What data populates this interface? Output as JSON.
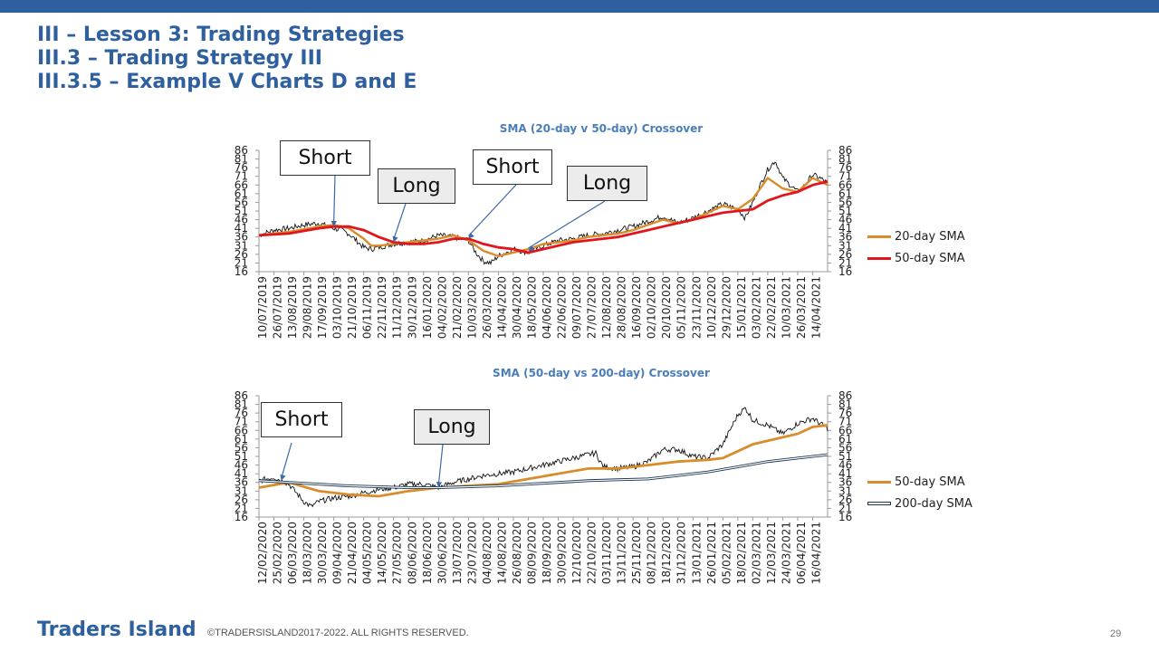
{
  "slide": {
    "title_lines": [
      "III – Lesson 3: Trading Strategies",
      "III.3 – Trading Strategy III",
      "III.3.5 – Example V Charts D and E"
    ],
    "footer_brand": "Traders Island",
    "footer_copyright": "©TRADERSISLAND2017-2022. ALL RIGHTS RESERVED.",
    "page_number": "29",
    "accent_color": "#2e5f9e"
  },
  "chart_data": [
    {
      "type": "line",
      "title": "SMA (20-day v 50-day) Crossover",
      "ylim": [
        16,
        86
      ],
      "y_ticks": [
        16,
        21,
        26,
        31,
        36,
        41,
        46,
        51,
        56,
        61,
        66,
        71,
        76,
        81,
        86
      ],
      "x_tick_labels": [
        "10/07/2019",
        "26/07/2019",
        "13/08/2019",
        "29/08/2019",
        "17/09/2019",
        "03/10/2019",
        "21/10/2019",
        "06/11/2019",
        "22/11/2019",
        "11/12/2019",
        "30/12/2019",
        "16/01/2020",
        "04/02/2020",
        "21/02/2020",
        "10/03/2020",
        "26/03/2020",
        "14/04/2020",
        "30/04/2020",
        "18/05/2020",
        "04/06/2020",
        "22/06/2020",
        "09/07/2020",
        "27/07/2020",
        "12/08/2020",
        "28/08/2020",
        "16/09/2020",
        "02/10/2020",
        "20/10/2020",
        "05/11/2020",
        "23/11/2020",
        "10/12/2020",
        "29/12/2020",
        "15/01/2021",
        "03/02/2021",
        "22/02/2021",
        "10/03/2021",
        "26/03/2021",
        "14/04/2021"
      ],
      "x_ticks_x": [
        0,
        1,
        2,
        3,
        4,
        5,
        6,
        7,
        8,
        9,
        10,
        11,
        12,
        13,
        14,
        15,
        16,
        17,
        18,
        19,
        20,
        21,
        22,
        23,
        24,
        25,
        26,
        27,
        28,
        29,
        30,
        31,
        32,
        33,
        34,
        35,
        36,
        37
      ],
      "x_range": [
        0,
        38
      ],
      "price": {
        "x": [
          0,
          1,
          2,
          3,
          4,
          5,
          5.5,
          6,
          7,
          7.5,
          8,
          9,
          10,
          11,
          12,
          13,
          14,
          14.5,
          15,
          15.5,
          16,
          17,
          18,
          19,
          20,
          21,
          22,
          23,
          24,
          25,
          26,
          27,
          28,
          29,
          30,
          31,
          32,
          32.5,
          33,
          33.5,
          34,
          34.5,
          35,
          36,
          36.5,
          37,
          37.5,
          38
        ],
        "y": [
          37,
          40,
          41,
          43,
          44,
          41,
          40,
          38,
          30,
          29,
          30,
          32,
          33,
          34,
          37,
          36,
          34,
          27,
          22,
          21,
          25,
          29,
          27,
          31,
          34,
          35,
          37,
          38,
          40,
          42,
          45,
          48,
          44,
          47,
          51,
          55,
          52,
          47,
          56,
          66,
          75,
          80,
          70,
          62,
          66,
          72,
          70,
          67
        ]
      },
      "series": [
        {
          "name": "20-day SMA",
          "color": "#d98c2b",
          "x": [
            0,
            2,
            4,
            5,
            6,
            7,
            7.5,
            8,
            9,
            10,
            11,
            12,
            13,
            14,
            15,
            16,
            17,
            18,
            19,
            20,
            21,
            22,
            23,
            24,
            25,
            26,
            27,
            28,
            29,
            30,
            31,
            32,
            33,
            34,
            35,
            36,
            37,
            38
          ],
          "y": [
            37,
            39,
            42,
            43,
            41,
            35,
            31,
            31,
            32,
            33,
            34,
            35,
            37,
            34,
            28,
            25,
            27,
            29,
            32,
            33,
            34,
            36,
            37,
            38,
            40,
            43,
            46,
            44,
            46,
            50,
            54,
            52,
            58,
            70,
            64,
            62,
            70,
            66
          ]
        },
        {
          "name": "50-day SMA",
          "color": "#e0161c",
          "x": [
            0,
            2,
            4,
            5,
            6,
            7,
            8,
            9,
            10,
            11,
            12,
            13,
            14,
            15,
            16,
            17,
            18,
            19,
            20,
            21,
            22,
            23,
            24,
            25,
            26,
            27,
            28,
            29,
            30,
            31,
            32,
            33,
            34,
            35,
            36,
            37,
            38
          ],
          "y": [
            37,
            38,
            41,
            42,
            42,
            40,
            36,
            33,
            32,
            32,
            33,
            35,
            35,
            32,
            30,
            29,
            27,
            29,
            31,
            33,
            34,
            35,
            36,
            38,
            40,
            42,
            44,
            46,
            48,
            50,
            51,
            52,
            57,
            60,
            62,
            66,
            68
          ]
        }
      ],
      "annotations": [
        {
          "label": "Short",
          "style": "white",
          "target": [
            5,
            42
          ]
        },
        {
          "label": "Long",
          "style": "grey",
          "target": [
            9,
            33
          ]
        },
        {
          "label": "Short",
          "style": "white",
          "target": [
            14,
            35
          ]
        },
        {
          "label": "Long",
          "style": "grey",
          "target": [
            18,
            28
          ]
        }
      ],
      "legend": "right"
    },
    {
      "type": "line",
      "title": "SMA (50-day vs 200-day) Crossover",
      "ylim": [
        16,
        86
      ],
      "y_ticks": [
        16,
        21,
        26,
        31,
        36,
        41,
        46,
        51,
        56,
        61,
        66,
        71,
        76,
        81,
        86
      ],
      "x_tick_labels": [
        "12/02/2020",
        "25/02/2020",
        "06/03/2020",
        "18/03/2020",
        "30/03/2020",
        "09/04/2020",
        "21/04/2020",
        "04/05/2020",
        "14/05/2020",
        "27/05/2020",
        "08/06/2020",
        "18/06/2020",
        "30/06/2020",
        "13/07/2020",
        "23/07/2020",
        "04/08/2020",
        "14/08/2020",
        "26/08/2020",
        "08/09/2020",
        "18/09/2020",
        "30/09/2020",
        "12/10/2020",
        "22/10/2020",
        "03/11/2020",
        "13/11/2020",
        "25/11/2020",
        "08/12/2020",
        "18/12/2020",
        "31/12/2020",
        "13/01/2021",
        "26/01/2021",
        "05/02/2021",
        "18/02/2021",
        "02/03/2021",
        "12/03/2021",
        "24/03/2021",
        "06/04/2021",
        "16/04/2021"
      ],
      "x_ticks_x": [
        0,
        1,
        2,
        3,
        4,
        5,
        6,
        7,
        8,
        9,
        10,
        11,
        12,
        13,
        14,
        15,
        16,
        17,
        18,
        19,
        20,
        21,
        22,
        23,
        24,
        25,
        26,
        27,
        28,
        29,
        30,
        31,
        32,
        33,
        34,
        35,
        36,
        37
      ],
      "x_range": [
        0,
        38
      ],
      "price": {
        "x": [
          0,
          1,
          2,
          3,
          3.5,
          4,
          5,
          6,
          7,
          8,
          9,
          10,
          11,
          12,
          13,
          14,
          15,
          16,
          17,
          18,
          19,
          20,
          21,
          22,
          22.5,
          23,
          24,
          25,
          26,
          27,
          28,
          29,
          30,
          31,
          32,
          32.5,
          33,
          34,
          35,
          36,
          37,
          38
        ],
        "y": [
          37,
          39,
          35,
          25,
          22,
          25,
          27,
          28,
          30,
          32,
          33,
          35,
          35,
          33,
          36,
          38,
          40,
          41,
          42,
          44,
          46,
          48,
          50,
          52,
          53,
          45,
          44,
          45,
          48,
          55,
          55,
          51,
          50,
          58,
          75,
          79,
          72,
          69,
          64,
          70,
          73,
          67
        ]
      },
      "series": [
        {
          "name": "50-day SMA",
          "color": "#d98c2b",
          "x": [
            0,
            2,
            4,
            6,
            8,
            10,
            12,
            14,
            16,
            18,
            20,
            22,
            23,
            24,
            26,
            28,
            30,
            31,
            32,
            33,
            34,
            35,
            36,
            37,
            38
          ],
          "y": [
            33,
            36,
            31,
            29,
            28,
            31,
            33,
            34,
            35,
            38,
            41,
            44,
            44,
            44,
            46,
            48,
            49,
            50,
            54,
            58,
            60,
            62,
            64,
            68,
            69
          ]
        },
        {
          "name": "200-day SMA",
          "color": "#1b3552",
          "x": [
            0,
            2,
            4,
            6,
            8,
            10,
            12,
            14,
            16,
            18,
            20,
            22,
            24,
            26,
            28,
            30,
            32,
            34,
            36,
            38
          ],
          "y": [
            37,
            36,
            35,
            34,
            33.5,
            33,
            33,
            33.5,
            34,
            35,
            36,
            37,
            37.5,
            38,
            40,
            42,
            45,
            48,
            50,
            52
          ]
        }
      ],
      "annotations": [
        {
          "label": "Short",
          "style": "white",
          "target": [
            1.5,
            37
          ]
        },
        {
          "label": "Long",
          "style": "grey",
          "target": [
            12,
            33
          ]
        }
      ],
      "legend": "right"
    }
  ]
}
